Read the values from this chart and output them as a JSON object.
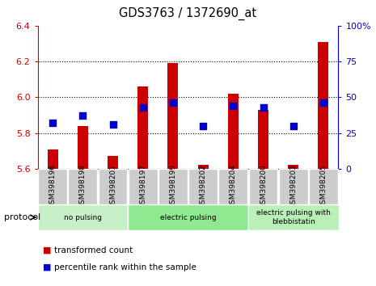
{
  "title": "GDS3763 / 1372690_at",
  "samples": [
    "GSM398196",
    "GSM398198",
    "GSM398201",
    "GSM398197",
    "GSM398199",
    "GSM398202",
    "GSM398204",
    "GSM398200",
    "GSM398203",
    "GSM398205"
  ],
  "red_values": [
    5.71,
    5.84,
    5.67,
    6.06,
    6.19,
    5.62,
    6.02,
    5.93,
    5.62,
    6.31
  ],
  "blue_values_pct": [
    32,
    37,
    31,
    43,
    46,
    30,
    44,
    43,
    30,
    46
  ],
  "ylim_left": [
    5.6,
    6.4
  ],
  "ylim_right": [
    0,
    100
  ],
  "yticks_left": [
    5.6,
    5.8,
    6.0,
    6.2,
    6.4
  ],
  "yticks_right": [
    0,
    25,
    50,
    75,
    100
  ],
  "groups": [
    {
      "label": "no pulsing",
      "start": 0,
      "end": 3,
      "color": "#c8f0c8"
    },
    {
      "label": "electric pulsing",
      "start": 3,
      "end": 7,
      "color": "#90e890"
    },
    {
      "label": "electric pulsing with\nblebbistatin",
      "start": 7,
      "end": 10,
      "color": "#b8f0b8"
    }
  ],
  "bar_color": "#cc0000",
  "dot_color": "#0000cc",
  "bar_width": 0.35,
  "dot_size": 28,
  "bg_color": "#ffffff",
  "tick_label_color_left": "#cc0000",
  "tick_label_color_right": "#0000cc",
  "base_value": 5.6,
  "protocol_label": "protocol",
  "legend_red": "transformed count",
  "legend_blue": "percentile rank within the sample",
  "xtick_box_color": "#cccccc"
}
